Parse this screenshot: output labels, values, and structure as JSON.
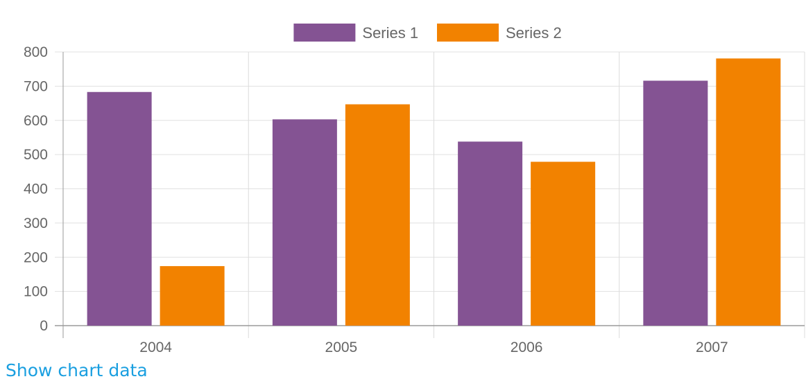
{
  "chart_data": {
    "type": "bar",
    "categories": [
      "2004",
      "2005",
      "2006",
      "2007"
    ],
    "series": [
      {
        "name": "Series 1",
        "values": [
          683,
          603,
          538,
          716
        ],
        "color": "#845393"
      },
      {
        "name": "Series 2",
        "values": [
          174,
          647,
          479,
          781
        ],
        "color": "#f28200"
      }
    ],
    "y_ticks": [
      "0",
      "100",
      "200",
      "300",
      "400",
      "500",
      "600",
      "700",
      "800"
    ],
    "ylim": [
      0,
      800
    ],
    "grid": true,
    "legend_position": "top-center",
    "title": "",
    "xlabel": "",
    "ylabel": ""
  },
  "footer": {
    "show_data_label": "Show chart data"
  }
}
